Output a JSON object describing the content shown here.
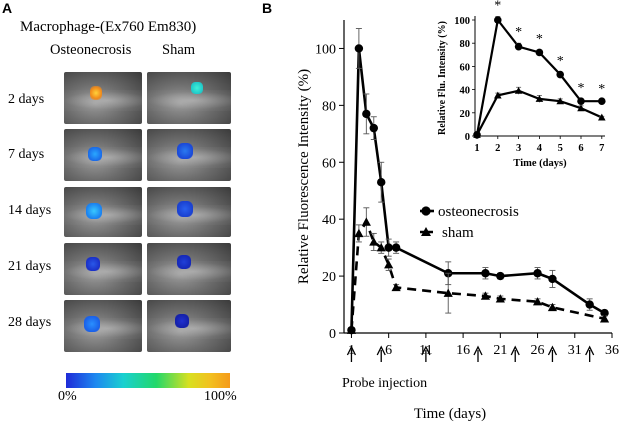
{
  "panel_a": {
    "letter": "A",
    "title": "Macrophage-(Ex760 Em830)",
    "columns": [
      "Osteonecrosis",
      "Sham"
    ],
    "rows": [
      "2 days",
      "7 days",
      "14 days",
      "21 days",
      "28 days"
    ],
    "colorbar": {
      "min_label": "0%",
      "max_label": "100%"
    }
  },
  "panel_b": {
    "letter": "B"
  },
  "chart_data": [
    {
      "type": "line",
      "title": "",
      "xlabel": "Time (days)",
      "ylabel": "Relative Fluorescence Intensity (%)",
      "xlim": [
        0,
        36
      ],
      "ylim": [
        0,
        110
      ],
      "xticks": [
        1,
        6,
        11,
        16,
        21,
        26,
        31,
        36
      ],
      "yticks": [
        0,
        20,
        40,
        60,
        80,
        100
      ],
      "probe_injection_label": "Probe injection",
      "probe_injection_days": [
        1,
        5,
        11,
        18,
        23,
        28,
        33
      ],
      "legend_position": "center-right",
      "series": [
        {
          "name": "osteonecrosis",
          "style": "solid",
          "marker": "circle",
          "x": [
            1,
            2,
            3,
            4,
            5,
            6,
            7,
            14,
            19,
            21,
            26,
            28,
            33,
            35
          ],
          "y": [
            1,
            100,
            77,
            72,
            53,
            30,
            30,
            21,
            21,
            20,
            21,
            19,
            10,
            7
          ],
          "err": [
            0,
            7,
            7,
            4,
            7,
            3,
            2,
            4,
            2,
            1,
            2,
            3,
            2,
            1
          ]
        },
        {
          "name": "sham",
          "style": "dashed",
          "marker": "triangle",
          "x": [
            1,
            2,
            3,
            4,
            5,
            6,
            7,
            14,
            19,
            21,
            26,
            28,
            35
          ],
          "y": [
            1,
            35,
            39,
            32,
            30,
            24,
            16,
            14,
            13,
            12,
            11,
            9,
            5
          ],
          "err": [
            0,
            3,
            5,
            3,
            2,
            2,
            1,
            7,
            1,
            1,
            1,
            1,
            1
          ]
        }
      ]
    },
    {
      "type": "line",
      "title": "",
      "xlabel": "Time (days)",
      "ylabel": "Relative Flu. Intensity (%)",
      "xlim": [
        1,
        7
      ],
      "ylim": [
        0,
        100
      ],
      "xticks": [
        1,
        2,
        3,
        4,
        5,
        6,
        7
      ],
      "yticks": [
        0,
        20,
        40,
        60,
        80,
        100
      ],
      "significance_marker": "*",
      "significant_days": [
        2,
        3,
        4,
        5,
        6,
        7
      ],
      "series": [
        {
          "name": "osteonecrosis",
          "style": "solid",
          "marker": "circle",
          "x": [
            1,
            2,
            3,
            4,
            5,
            6,
            7
          ],
          "y": [
            1,
            100,
            77,
            72,
            53,
            30,
            30
          ],
          "err": [
            0,
            3,
            3,
            2,
            2,
            2,
            1
          ]
        },
        {
          "name": "sham",
          "style": "solid",
          "marker": "triangle",
          "x": [
            1,
            2,
            3,
            4,
            5,
            6,
            7
          ],
          "y": [
            1,
            35,
            39,
            32,
            30,
            24,
            16
          ],
          "err": [
            0,
            2,
            3,
            3,
            2,
            2,
            1
          ]
        }
      ]
    }
  ]
}
